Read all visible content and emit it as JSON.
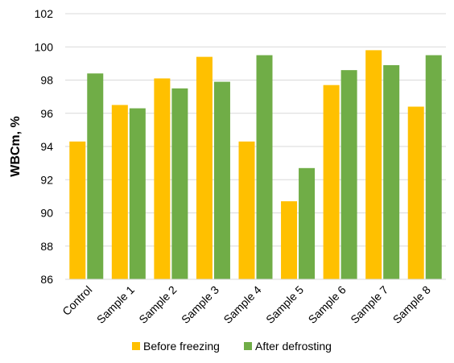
{
  "chart_data": {
    "type": "bar",
    "title": "",
    "xlabel": "",
    "ylabel": "WBCm, %",
    "ylim": [
      86,
      102
    ],
    "yticks": [
      86,
      88,
      90,
      92,
      94,
      96,
      98,
      100,
      102
    ],
    "grid": true,
    "legend_position": "bottom",
    "categories": [
      "Control",
      "Sample 1",
      "Sample 2",
      "Sample 3",
      "Sample 4",
      "Sample 5",
      "Sample 6",
      "Sample 7",
      "Sample 8"
    ],
    "series": [
      {
        "name": "Before freezing",
        "color": "#FFC000",
        "values": [
          94.3,
          96.5,
          98.1,
          99.4,
          94.3,
          90.7,
          97.7,
          99.8,
          96.4
        ]
      },
      {
        "name": "After defrosting",
        "color": "#70AD47",
        "values": [
          98.4,
          96.3,
          97.5,
          97.9,
          99.5,
          92.7,
          98.6,
          98.9,
          99.5
        ]
      }
    ]
  }
}
